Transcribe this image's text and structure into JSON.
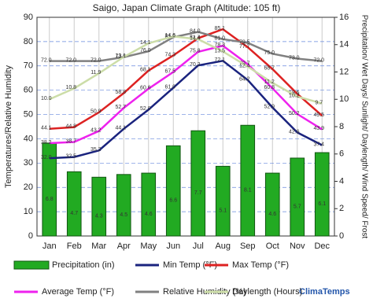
{
  "chart_data": {
    "type": "combo",
    "title": "Saigo, Japan Climate Graph (Altitude: 105 ft)",
    "ylabel": "Temperatures/Relative Humidity",
    "y2label": "Precipitation/ Wet Days/ Sunlight/ Daylength/ Wind Speed/ Frost",
    "watermark": "ClimaTemps",
    "categories": [
      "Jan",
      "Feb",
      "Mar",
      "Apr",
      "May",
      "Jun",
      "Jul",
      "Aug",
      "Sep",
      "Oct",
      "Nov",
      "Dec"
    ],
    "ylim": [
      0,
      90
    ],
    "yticks": [
      0,
      10,
      20,
      30,
      40,
      50,
      60,
      70,
      80,
      90
    ],
    "y2lim": [
      0,
      16
    ],
    "y2ticks": [
      0,
      2,
      4,
      6,
      8,
      10,
      12,
      14,
      16
    ],
    "grid": true,
    "series": [
      {
        "name": "Precipitation (in)",
        "type": "bar",
        "axis": "y2",
        "color": "#22aa22",
        "values": [
          6.8,
          4.7,
          4.3,
          4.5,
          4.6,
          6.6,
          7.7,
          5.1,
          8.1,
          4.6,
          5.7,
          6.1
        ]
      },
      {
        "name": "Min Temp (°F)",
        "type": "line",
        "color": "#1a237e",
        "values": [
          32.0,
          32.5,
          35.2,
          44.1,
          52.0,
          61.0,
          70.2,
          72.1,
          64.2,
          52.9,
          42.6,
          37.4
        ],
        "value_labels": [
          "32.0",
          "32.5",
          "35.2",
          "44.1",
          "52.0",
          "61.0",
          "70.2",
          "72.1",
          "64.2",
          "52.9",
          "42.6",
          "37.4"
        ]
      },
      {
        "name": "Max Temp (°F)",
        "type": "line",
        "color": "#dd2222",
        "values": [
          44.1,
          44.8,
          50.9,
          58.8,
          68.1,
          74.3,
          81.4,
          85.1,
          77.7,
          68.7,
          58.5,
          49.5
        ],
        "value_labels": [
          "44.1",
          "44.8",
          "50.9",
          "58.8",
          "68.1",
          "74.3",
          "81.4",
          "85.1",
          "77.7",
          "68.7",
          "58.5",
          "49.5"
        ]
      },
      {
        "name": "Average Temp (°F)",
        "type": "line",
        "color": "#ee22ee",
        "values": [
          38.2,
          38.7,
          43.2,
          52.7,
          60.6,
          67.5,
          75.8,
          78.3,
          70.7,
          60.8,
          50.2,
          43.9
        ],
        "value_labels": [
          "38.2",
          "38.7",
          "43.2",
          "52.7",
          "60.6",
          "67.5",
          "75.8",
          "78.3",
          "70.7",
          "60.8",
          "50.2",
          "43.9"
        ]
      },
      {
        "name": "Relative Humidity (%)",
        "type": "line",
        "color": "#808080",
        "values": [
          72.0,
          72.0,
          72.0,
          73.6,
          76.0,
          81.8,
          84.0,
          81.0,
          79.5,
          75.0,
          73.0,
          72.0
        ],
        "value_labels": [
          "72.0",
          "72.0",
          "72.0",
          "73.6",
          "76.0",
          "81.8",
          "84.0",
          "81.0",
          "79.5",
          "75.0",
          "73.0",
          "72.0"
        ]
      },
      {
        "name": "Daylength (Hours)",
        "type": "line",
        "axis": "y2",
        "color": "#ccdda8",
        "values": [
          10.0,
          10.8,
          11.9,
          13.1,
          14.1,
          14.6,
          14.4,
          13.5,
          12.4,
          11.2,
          10.2,
          9.7
        ],
        "value_labels": [
          "10.0",
          "10.8",
          "11.9",
          "13.1",
          "14.1",
          "14.6",
          "14.4",
          "13.5",
          "12.4",
          "11.2",
          "10.2",
          "9.7"
        ]
      }
    ]
  }
}
